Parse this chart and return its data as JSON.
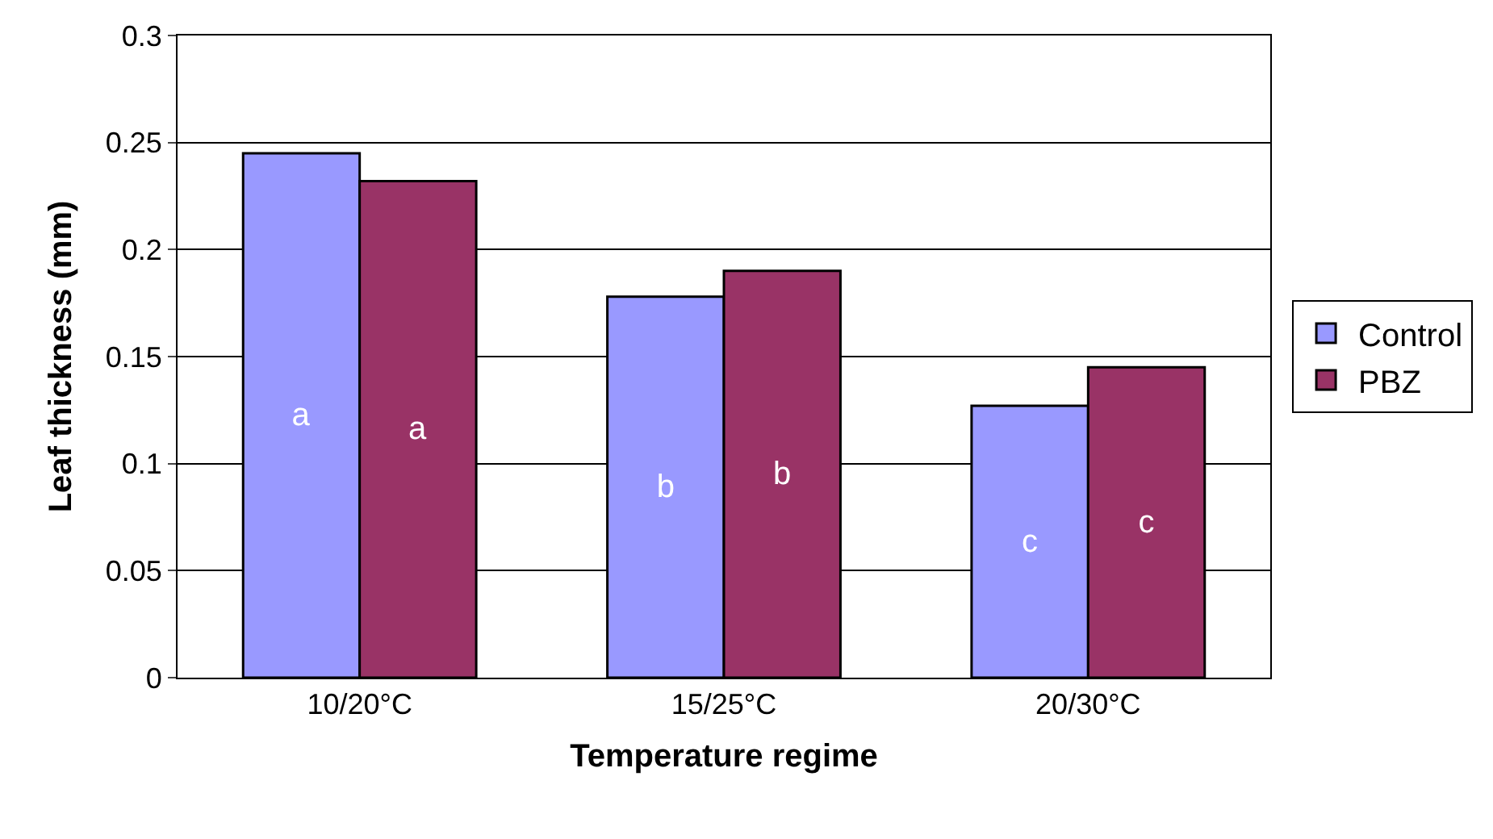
{
  "chart_data": {
    "type": "bar",
    "xlabel": "Temperature regime",
    "ylabel": "Leaf thickness (mm)",
    "categories": [
      "10/20°C",
      "15/25°C",
      "20/30°C"
    ],
    "series": [
      {
        "name": "Control",
        "color": "#9999ff",
        "values": [
          0.245,
          0.178,
          0.127
        ],
        "value_labels": [
          "a",
          "b",
          "c"
        ]
      },
      {
        "name": "PBZ",
        "color": "#993366",
        "values": [
          0.232,
          0.19,
          0.145
        ],
        "value_labels": [
          "a",
          "b",
          "c"
        ]
      }
    ],
    "ylim": [
      0,
      0.3
    ],
    "yticks": [
      0,
      0.05,
      0.1,
      0.15,
      0.2,
      0.25,
      0.3
    ],
    "grid": "y",
    "legend": "right"
  }
}
